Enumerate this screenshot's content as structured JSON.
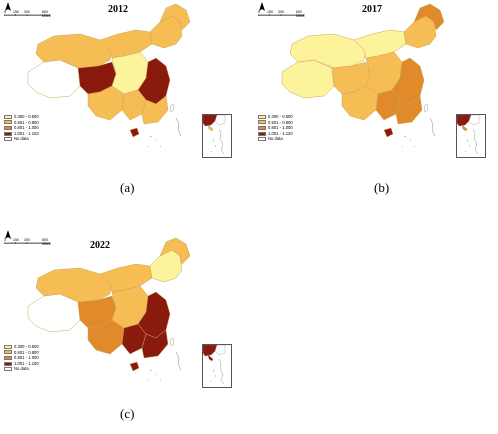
{
  "figure": {
    "panels": [
      {
        "id": "a",
        "year": "2012",
        "caption": "(a)",
        "scale_labels": [
          "0",
          "150",
          "300",
          "600 Miles"
        ],
        "north_label": "N",
        "legend": [
          {
            "label": "0.300 - 0.500",
            "color": "#fdf39a"
          },
          {
            "label": "0.501 - 0.800",
            "color": "#f6bd54"
          },
          {
            "label": "0.801 - 1.000",
            "color": "#e08a2b"
          },
          {
            "label": "1.001 - 1.102",
            "color": "#8b1a0e"
          },
          {
            "label": "No data",
            "color": "#ffffff"
          }
        ],
        "regions": {
          "west": "none",
          "northwest": "c2",
          "north_east": "c2",
          "northeast_tip": "c2",
          "plateau": "c4",
          "central": "c1",
          "east": "c4",
          "south": "c2",
          "southwest": "c2",
          "southeast": "c2",
          "north_central": "c2",
          "island": "c4"
        }
      },
      {
        "id": "b",
        "year": "2017",
        "caption": "(b)",
        "scale_labels": [
          "0",
          "150",
          "300",
          "600 Miles"
        ],
        "north_label": "N",
        "legend": [
          {
            "label": "0.300 - 0.500",
            "color": "#fdf39a"
          },
          {
            "label": "0.501 - 0.800",
            "color": "#f6bd54"
          },
          {
            "label": "0.801 - 1.000",
            "color": "#e08a2b"
          },
          {
            "label": "1.001 - 1.120",
            "color": "#8b1a0e"
          },
          {
            "label": "No data",
            "color": "#ffffff"
          }
        ],
        "regions": {
          "west": "c1",
          "northwest": "c1",
          "north_east": "c2",
          "northeast_tip": "c3",
          "plateau": "c2",
          "central": "c2",
          "east": "c3",
          "south": "c3",
          "southwest": "c2",
          "southeast": "c3",
          "north_central": "c1",
          "island": "c4"
        }
      },
      {
        "id": "c",
        "year": "2022",
        "caption": "(c)",
        "scale_labels": [
          "0",
          "150",
          "300",
          "600 Miles"
        ],
        "north_label": "N",
        "legend": [
          {
            "label": "0.300 - 0.500",
            "color": "#fdf39a"
          },
          {
            "label": "0.501 - 0.800",
            "color": "#f6bd54"
          },
          {
            "label": "0.801 - 1.000",
            "color": "#e08a2b"
          },
          {
            "label": "1.001 - 1.100",
            "color": "#8b1a0e"
          },
          {
            "label": "No data",
            "color": "#ffffff"
          }
        ],
        "regions": {
          "west": "none",
          "northwest": "c2",
          "north_east": "c1",
          "northeast_tip": "c2",
          "plateau": "c3",
          "central": "c2",
          "east": "c4",
          "south": "c4",
          "southwest": "c3",
          "southeast": "c4",
          "north_central": "c2",
          "island": "c4"
        }
      }
    ]
  }
}
